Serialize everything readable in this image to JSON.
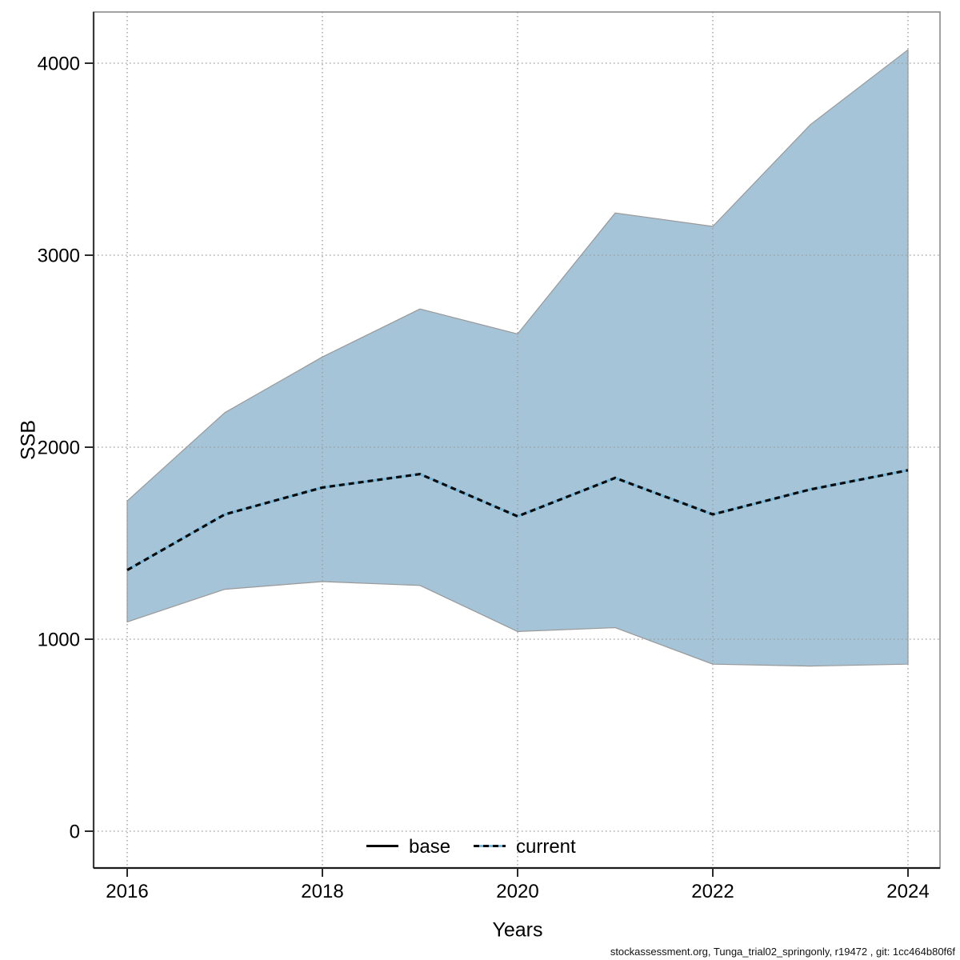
{
  "chart_data": {
    "type": "area",
    "title": "",
    "xlabel": "Years",
    "ylabel": "SSB",
    "x": [
      2016,
      2017,
      2018,
      2019,
      2020,
      2021,
      2022,
      2023,
      2024
    ],
    "xticks": [
      2016,
      2018,
      2020,
      2022,
      2024
    ],
    "yticks": [
      0,
      1000,
      2000,
      3000,
      4000
    ],
    "xlim": [
      2015.6,
      2024.4
    ],
    "ylim": [
      -190,
      4270
    ],
    "grid": "dotted",
    "legend_position": "bottom-center-inside",
    "series": [
      {
        "name": "base",
        "type": "line",
        "style": "solid",
        "color": "#000000"
      },
      {
        "name": "current",
        "type": "line",
        "style": "dashed",
        "dash_color": "#0b0b0b",
        "gap_color": "#74b8dc",
        "values": [
          1360,
          1650,
          1790,
          1860,
          1640,
          1840,
          1650,
          1780,
          1880
        ]
      }
    ],
    "band": {
      "series": "current",
      "fill": "#a6c4d7",
      "edge": "#999999",
      "upper": [
        1720,
        2180,
        2470,
        2720,
        2590,
        3220,
        3150,
        3680,
        4070
      ],
      "lower": [
        1090,
        1260,
        1300,
        1280,
        1040,
        1060,
        870,
        860,
        870
      ]
    }
  },
  "legend": {
    "items": [
      {
        "label": "base"
      },
      {
        "label": "current"
      }
    ]
  },
  "footer": {
    "text": "stockassessment.org, Tunga_trial02_springonly, r19472 , git: 1cc464b80f6f"
  }
}
